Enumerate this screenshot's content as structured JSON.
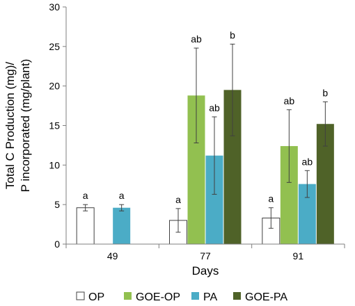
{
  "chart_data": {
    "type": "bar",
    "categories": [
      "49",
      "77",
      "91"
    ],
    "xlabel": "Days",
    "ylabel_lines": [
      "Total C Production (mg)/",
      "P incorporated (mg/plant)"
    ],
    "ylim": [
      0,
      30
    ],
    "yticks": [
      0,
      5,
      10,
      15,
      20,
      25,
      30
    ],
    "grid": false,
    "legend_position": "bottom",
    "series": [
      {
        "name": "OP",
        "color": "#ffffff",
        "values": [
          4.6,
          3.0,
          3.3
        ],
        "errors": [
          0.4,
          1.5,
          1.3
        ],
        "labels": [
          "a",
          "a",
          "a"
        ]
      },
      {
        "name": "GOE-OP",
        "color": "#92c050",
        "values": [
          null,
          18.8,
          12.4
        ],
        "errors": [
          null,
          6.0,
          4.6
        ],
        "labels": [
          "",
          "ab",
          "ab"
        ]
      },
      {
        "name": "PA",
        "color": "#4bacc6",
        "values": [
          4.6,
          11.2,
          7.6
        ],
        "errors": [
          0.4,
          4.9,
          1.7
        ],
        "labels": [
          "a",
          "ab",
          "ab"
        ]
      },
      {
        "name": "GOE-PA",
        "color": "#4f6228",
        "values": [
          null,
          19.5,
          15.2
        ],
        "errors": [
          null,
          5.8,
          2.8
        ],
        "labels": [
          "",
          "b",
          "b"
        ]
      }
    ]
  }
}
